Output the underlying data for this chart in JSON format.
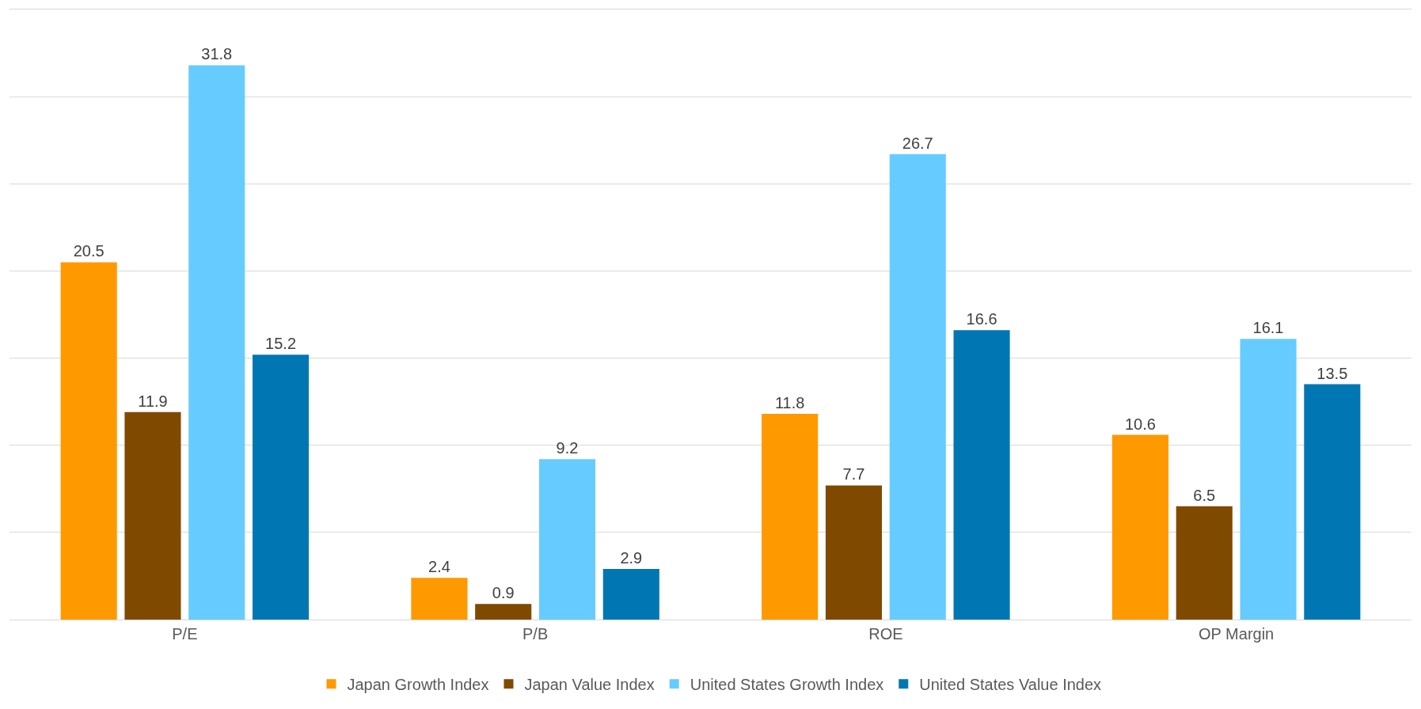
{
  "chart_data": {
    "type": "bar",
    "categories": [
      "P/E",
      "P/B",
      "ROE",
      "OP Margin"
    ],
    "series": [
      {
        "name": "Japan Growth Index",
        "color": "#ff9900",
        "values": [
          20.5,
          2.4,
          11.8,
          10.6
        ]
      },
      {
        "name": "Japan Value Index",
        "color": "#7f4a00",
        "values": [
          11.9,
          0.9,
          7.7,
          6.5
        ]
      },
      {
        "name": "United States Growth Index",
        "color": "#66ccff",
        "values": [
          31.8,
          9.2,
          26.7,
          16.1
        ]
      },
      {
        "name": "United States Value Index",
        "color": "#0077b3",
        "values": [
          15.2,
          2.9,
          16.6,
          13.5
        ]
      }
    ],
    "ylim": [
      0,
      35
    ],
    "yticks": [
      {
        "value": 0,
        "label": null
      },
      {
        "value": 5,
        "label": null
      },
      {
        "value": 10,
        "label": null
      },
      {
        "value": 15,
        "label": null
      },
      {
        "value": 20,
        "label": null
      },
      {
        "value": 25,
        "label": null
      },
      {
        "value": 30,
        "label": null
      },
      {
        "value": 35,
        "label": null
      }
    ],
    "grid": "y",
    "data_labels": true,
    "legend": "bottom",
    "tick_labels": "x"
  }
}
